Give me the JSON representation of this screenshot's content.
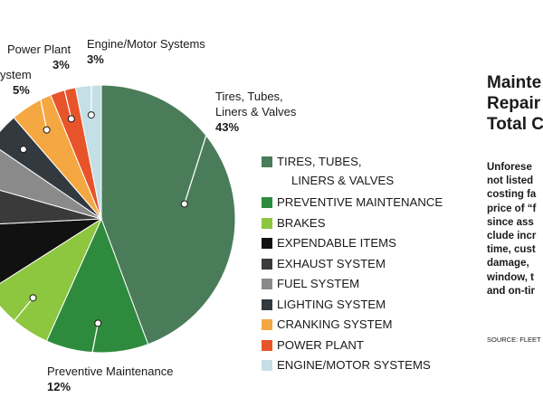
{
  "chart_data": {
    "type": "pie",
    "categories": [
      "Tires, Tubes, Liners & Valves",
      "Preventive Maintenance",
      "Brakes",
      "Expendable Items",
      "Exhaust System",
      "Fuel System",
      "Lighting System",
      "Cranking System",
      "Power Plant",
      "Engine/Motor Systems"
    ],
    "values": [
      43,
      12,
      9,
      8,
      5,
      5,
      4,
      5,
      3,
      3
    ],
    "colors": [
      "#4a7c59",
      "#2e8b3d",
      "#8dc63f",
      "#111111",
      "#3a3a3a",
      "#8a8a8a",
      "#333a3f",
      "#f5a742",
      "#e8542a",
      "#c4dfe6"
    ],
    "start_angle_deg": 0,
    "direction": "clockwise"
  },
  "callouts": {
    "engine": {
      "label": "Engine/Motor Systems",
      "pct": "3%"
    },
    "power": {
      "label": "Power Plant",
      "pct": "3%"
    },
    "cranking": {
      "label": "ystem",
      "pct": "5%"
    },
    "tires": {
      "label1": "Tires, Tubes,",
      "label2": "Liners & Valves",
      "pct": "43%"
    },
    "pm": {
      "label": "Preventive Maintenance",
      "pct": "12%"
    }
  },
  "legend": [
    {
      "line1": "TIRES, TUBES,",
      "line2": "LINERS & VALVES",
      "color": "#4a7c59"
    },
    {
      "line1": "PREVENTIVE MAINTENANCE",
      "color": "#2e8b3d"
    },
    {
      "line1": "BRAKES",
      "color": "#8dc63f"
    },
    {
      "line1": "EXPENDABLE ITEMS",
      "color": "#111111"
    },
    {
      "line1": "EXHAUST SYSTEM",
      "color": "#3a3a3a"
    },
    {
      "line1": "FUEL SYSTEM",
      "color": "#8a8a8a"
    },
    {
      "line1": "LIGHTING SYSTEM",
      "color": "#333a3f"
    },
    {
      "line1": "CRANKING SYSTEM",
      "color": "#f5a742"
    },
    {
      "line1": "POWER PLANT",
      "color": "#e8542a"
    },
    {
      "line1": "ENGINE/MOTOR SYSTEMS",
      "color": "#c4dfe6"
    }
  ],
  "right_panel": {
    "title": "Mainte\nRepair\nTotal C",
    "body": "Unforese\nnot listed\ncosting fa\nprice of “f\nsince ass\nclude incr\ntime, cust\ndamage,\nwindow, t\nand on-tir",
    "source": "SOURCE: FLEET"
  }
}
